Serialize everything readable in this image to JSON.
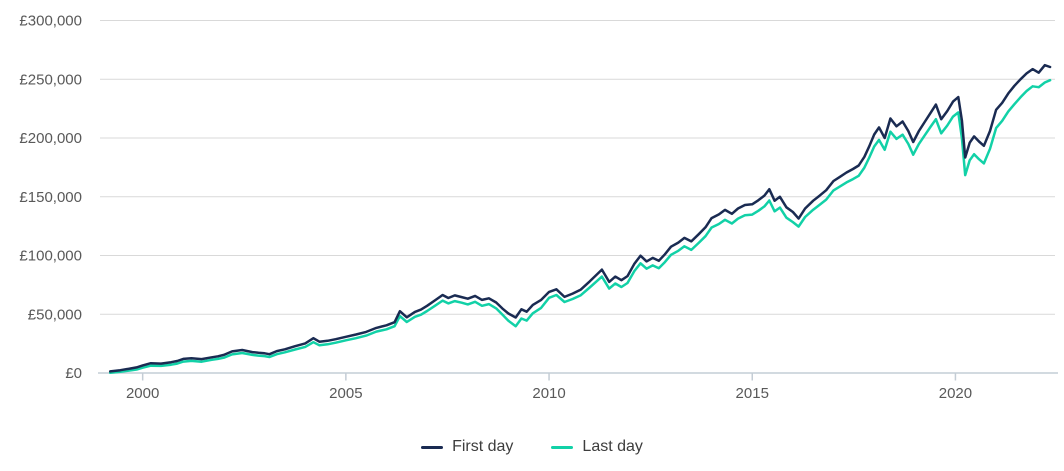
{
  "chart_data": {
    "type": "line",
    "title": "",
    "x_axis": {
      "min": 1998.95,
      "max": 2022.45,
      "ticks": [
        2000,
        2005,
        2010,
        2015,
        2020
      ],
      "tick_labels": [
        "2000",
        "2005",
        "2010",
        "2015",
        "2020"
      ]
    },
    "y_axis": {
      "min": 0,
      "max": 300000,
      "ticks": [
        0,
        50000,
        100000,
        150000,
        200000,
        250000,
        300000
      ],
      "tick_labels": [
        "£0",
        "£50,000",
        "£100,000",
        "£150,000",
        "£200,000",
        "£250,000",
        "£300,000"
      ],
      "currency": "GBP"
    },
    "grid": true,
    "legend": {
      "position": "bottom",
      "items": [
        {
          "label": "First day",
          "color": "#1a2b52"
        },
        {
          "label": "Last day",
          "color": "#12d1a7"
        }
      ]
    },
    "series": [
      {
        "name": "First day",
        "color": "#1a2b52",
        "width": 2.5
      },
      {
        "name": "Last day",
        "color": "#12d1a7",
        "width": 2.5
      }
    ],
    "points": [
      [
        1999.2,
        1400,
        200
      ],
      [
        1999.45,
        2400,
        1000
      ],
      [
        1999.7,
        3800,
        2200
      ],
      [
        1999.85,
        4800,
        3000
      ],
      [
        2000.0,
        6500,
        4500
      ],
      [
        2000.2,
        8300,
        6200
      ],
      [
        2000.45,
        8000,
        6000
      ],
      [
        2000.7,
        9200,
        7100
      ],
      [
        2000.85,
        10200,
        8000
      ],
      [
        2001.0,
        12000,
        9700
      ],
      [
        2001.2,
        12600,
        10300
      ],
      [
        2001.45,
        11800,
        9600
      ],
      [
        2001.7,
        13400,
        11200
      ],
      [
        2001.85,
        14200,
        12000
      ],
      [
        2002.0,
        15400,
        13000
      ],
      [
        2002.2,
        18400,
        15800
      ],
      [
        2002.45,
        19600,
        17000
      ],
      [
        2002.7,
        17800,
        15400
      ],
      [
        2002.85,
        17200,
        14800
      ],
      [
        2003.0,
        16800,
        14400
      ],
      [
        2003.12,
        16000,
        13600
      ],
      [
        2003.3,
        18600,
        16000
      ],
      [
        2003.5,
        20200,
        17600
      ],
      [
        2003.75,
        22800,
        20000
      ],
      [
        2004.0,
        25200,
        22200
      ],
      [
        2004.2,
        29600,
        26200
      ],
      [
        2004.35,
        26600,
        23600
      ],
      [
        2004.55,
        27400,
        24400
      ],
      [
        2004.75,
        28800,
        25800
      ],
      [
        2005.0,
        30800,
        27800
      ],
      [
        2005.25,
        32800,
        29600
      ],
      [
        2005.5,
        35000,
        31800
      ],
      [
        2005.75,
        38400,
        35200
      ],
      [
        2006.0,
        40600,
        37200
      ],
      [
        2006.2,
        43200,
        39800
      ],
      [
        2006.33,
        52600,
        48400
      ],
      [
        2006.5,
        47400,
        43400
      ],
      [
        2006.7,
        52000,
        47800
      ],
      [
        2006.85,
        54000,
        49600
      ],
      [
        2007.0,
        57200,
        52800
      ],
      [
        2007.2,
        62000,
        57400
      ],
      [
        2007.38,
        66400,
        61600
      ],
      [
        2007.52,
        63800,
        59200
      ],
      [
        2007.68,
        66000,
        61200
      ],
      [
        2007.85,
        64600,
        59800
      ],
      [
        2008.0,
        63200,
        58400
      ],
      [
        2008.18,
        65600,
        60600
      ],
      [
        2008.35,
        62200,
        57200
      ],
      [
        2008.52,
        63600,
        58600
      ],
      [
        2008.7,
        60000,
        55000
      ],
      [
        2008.85,
        55000,
        49800
      ],
      [
        2009.0,
        50600,
        44400
      ],
      [
        2009.18,
        47200,
        39800
      ],
      [
        2009.32,
        54200,
        46400
      ],
      [
        2009.45,
        52200,
        44600
      ],
      [
        2009.6,
        58000,
        50800
      ],
      [
        2009.8,
        62000,
        55200
      ],
      [
        2010.0,
        69000,
        64000
      ],
      [
        2010.18,
        71200,
        66400
      ],
      [
        2010.38,
        64800,
        60400
      ],
      [
        2010.58,
        67600,
        63000
      ],
      [
        2010.78,
        71000,
        66200
      ],
      [
        2011.0,
        78000,
        72800
      ],
      [
        2011.15,
        83000,
        77400
      ],
      [
        2011.3,
        88000,
        82000
      ],
      [
        2011.48,
        77500,
        71800
      ],
      [
        2011.63,
        82000,
        76200
      ],
      [
        2011.78,
        79000,
        73200
      ],
      [
        2011.93,
        82500,
        76600
      ],
      [
        2012.1,
        93000,
        86800
      ],
      [
        2012.25,
        99800,
        93400
      ],
      [
        2012.4,
        95000,
        88800
      ],
      [
        2012.55,
        98000,
        91600
      ],
      [
        2012.7,
        95500,
        89200
      ],
      [
        2012.85,
        101000,
        94400
      ],
      [
        2013.0,
        107500,
        100600
      ],
      [
        2013.18,
        111000,
        104000
      ],
      [
        2013.33,
        115000,
        107800
      ],
      [
        2013.5,
        112000,
        104800
      ],
      [
        2013.68,
        118000,
        110600
      ],
      [
        2013.85,
        124000,
        116400
      ],
      [
        2014.0,
        131800,
        123800
      ],
      [
        2014.18,
        135000,
        126800
      ],
      [
        2014.33,
        138800,
        130400
      ],
      [
        2014.5,
        135500,
        127200
      ],
      [
        2014.65,
        140000,
        131400
      ],
      [
        2014.82,
        143000,
        134200
      ],
      [
        2015.0,
        143600,
        134800
      ],
      [
        2015.15,
        147000,
        138000
      ],
      [
        2015.3,
        151000,
        141800
      ],
      [
        2015.42,
        156400,
        146800
      ],
      [
        2015.55,
        146600,
        137600
      ],
      [
        2015.68,
        150000,
        140800
      ],
      [
        2015.84,
        141000,
        132200
      ],
      [
        2016.0,
        137000,
        128400
      ],
      [
        2016.14,
        131400,
        124600
      ],
      [
        2016.3,
        140000,
        132800
      ],
      [
        2016.5,
        146600,
        139000
      ],
      [
        2016.66,
        151000,
        143200
      ],
      [
        2016.82,
        155600,
        147600
      ],
      [
        2017.0,
        163400,
        155400
      ],
      [
        2017.16,
        167000,
        158800
      ],
      [
        2017.32,
        170600,
        162200
      ],
      [
        2017.48,
        173600,
        165000
      ],
      [
        2017.62,
        176600,
        167800
      ],
      [
        2017.76,
        184000,
        174800
      ],
      [
        2017.88,
        193000,
        183400
      ],
      [
        2018.0,
        203000,
        192800
      ],
      [
        2018.12,
        209000,
        198400
      ],
      [
        2018.26,
        200000,
        190000
      ],
      [
        2018.4,
        216600,
        205400
      ],
      [
        2018.55,
        210000,
        199200
      ],
      [
        2018.7,
        214000,
        202800
      ],
      [
        2018.84,
        206000,
        195000
      ],
      [
        2018.96,
        196600,
        185800
      ],
      [
        2019.1,
        206000,
        195000
      ],
      [
        2019.25,
        214000,
        202600
      ],
      [
        2019.4,
        222000,
        210200
      ],
      [
        2019.52,
        228400,
        216000
      ],
      [
        2019.65,
        216000,
        204000
      ],
      [
        2019.8,
        223000,
        210600
      ],
      [
        2019.94,
        231000,
        218200
      ],
      [
        2020.07,
        234800,
        221800
      ],
      [
        2020.16,
        215000,
        199800
      ],
      [
        2020.24,
        183400,
        168400
      ],
      [
        2020.35,
        196000,
        181000
      ],
      [
        2020.46,
        201400,
        186200
      ],
      [
        2020.58,
        197000,
        182000
      ],
      [
        2020.7,
        193400,
        178400
      ],
      [
        2020.85,
        206000,
        190800
      ],
      [
        2021.0,
        224000,
        208400
      ],
      [
        2021.15,
        230000,
        214600
      ],
      [
        2021.3,
        238000,
        222600
      ],
      [
        2021.45,
        244400,
        228800
      ],
      [
        2021.6,
        250000,
        234600
      ],
      [
        2021.75,
        255000,
        240000
      ],
      [
        2021.9,
        258600,
        244000
      ],
      [
        2022.05,
        255600,
        243200
      ],
      [
        2022.2,
        262000,
        247200
      ],
      [
        2022.33,
        260400,
        249200
      ]
    ]
  },
  "colors": {
    "background": "#ffffff",
    "gridline": "#d9d9d9",
    "axis_line": "#c4cdd5",
    "tick_mark": "#c4cdd5",
    "axis_label": "#595959",
    "legend_text": "#3d3d3d"
  }
}
